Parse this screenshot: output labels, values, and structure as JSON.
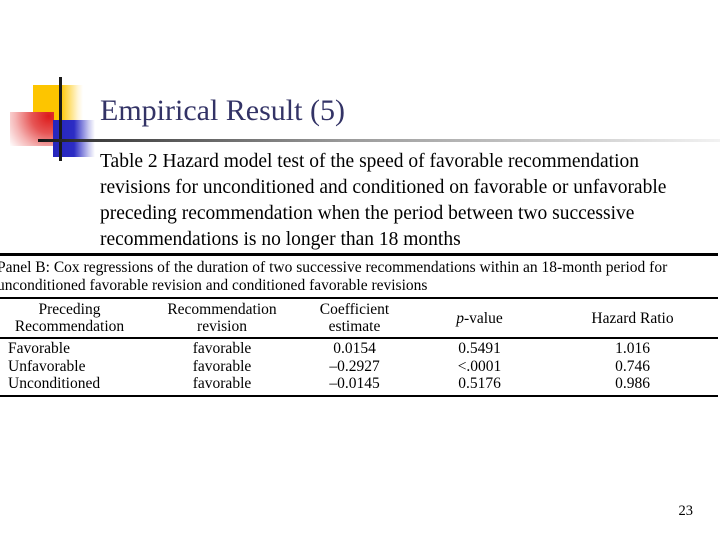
{
  "slide": {
    "title": "Empirical Result (5)",
    "body_lines": [
      "Table 2 Hazard model test of the speed of favorable recommendation",
      "revisions for unconditioned and conditioned on favorable or unfavorable",
      "preceding recommendation when the period between two successive",
      "recommendations is no longer than 18 months"
    ],
    "page_number": "23"
  },
  "table": {
    "caption_lines": [
      "Panel B: Cox regressions of the duration of two successive recommendations within an 18-month period for",
      "unconditioned favorable revision and conditioned favorable revisions"
    ],
    "headers": [
      {
        "top": "Preceding",
        "bottom": "Recommendation"
      },
      {
        "top": "Recommendation",
        "bottom": "revision"
      },
      {
        "top": "Coefficient",
        "bottom": "estimate"
      },
      {
        "italic": "p",
        "rest": "-value"
      },
      {
        "top": "Hazard Ratio"
      }
    ],
    "rows": [
      [
        "Favorable",
        "favorable",
        "0.0154",
        "0.5491",
        "1.016"
      ],
      [
        "Unfavorable",
        "favorable",
        "–0.2927",
        "<.0001",
        "0.746"
      ],
      [
        "Unconditioned",
        "favorable",
        "–0.0145",
        "0.5176",
        "0.986"
      ]
    ]
  },
  "colors": {
    "title": "#333366",
    "decoration_yellow": "#FDC500",
    "decoration_red": "#DD1A1A",
    "decoration_blue": "#2626BD",
    "rule_dark": "#141414",
    "table_border": "#000000"
  }
}
